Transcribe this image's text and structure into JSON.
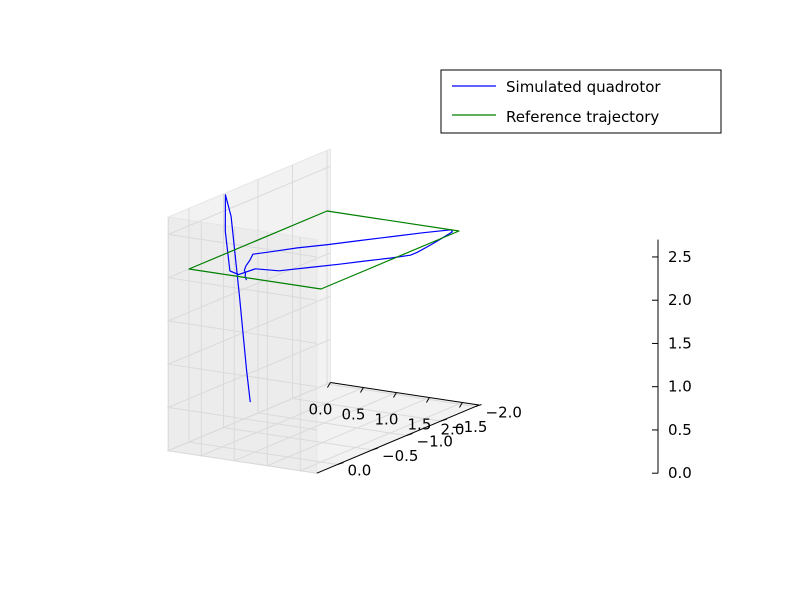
{
  "chart_data": {
    "type": "line",
    "projection": "3d",
    "grid": true,
    "legend": {
      "location": "upper-right",
      "entries": [
        {
          "label": "Simulated quadrotor",
          "color": "#0000ff"
        },
        {
          "label": "Reference trajectory",
          "color": "#008000"
        }
      ]
    },
    "x_ticks": [
      "0.0",
      "0.5",
      "1.0",
      "1.5",
      "2.0"
    ],
    "y_ticks": [
      "0.0",
      "−0.5",
      "−1.0",
      "−1.5",
      "−2.0"
    ],
    "z_ticks": [
      "0.0",
      "0.5",
      "1.0",
      "1.5",
      "2.0",
      "2.5"
    ],
    "xlim": [
      0,
      2.25
    ],
    "ylim": [
      -2.05,
      0.3
    ],
    "zlim": [
      0,
      2.7
    ],
    "series": [
      {
        "name": "Simulated quadrotor",
        "color": "#0000ff",
        "points": [
          {
            "x": 0.3,
            "y": -0.6,
            "z": 0.3
          },
          {
            "x": 0.35,
            "y": -0.5,
            "z": 0.7
          },
          {
            "x": 0.4,
            "y": -0.35,
            "z": 1.6
          },
          {
            "x": 0.45,
            "y": -0.18,
            "z": 2.6
          },
          {
            "x": 0.5,
            "y": -0.05,
            "z": 2.9
          },
          {
            "x": 0.55,
            "y": 0.0,
            "z": 2.5
          },
          {
            "x": 0.62,
            "y": 0.0,
            "z": 2.05
          },
          {
            "x": 0.7,
            "y": -0.05,
            "z": 2.0
          },
          {
            "x": 0.85,
            "y": -0.15,
            "z": 2.05
          },
          {
            "x": 1.05,
            "y": -0.3,
            "z": 2.0
          },
          {
            "x": 1.3,
            "y": -0.5,
            "z": 2.0
          },
          {
            "x": 1.55,
            "y": -0.7,
            "z": 2.0
          },
          {
            "x": 1.75,
            "y": -0.88,
            "z": 2.0
          },
          {
            "x": 1.95,
            "y": -1.05,
            "z": 2.0
          },
          {
            "x": 2.1,
            "y": -1.2,
            "z": 2.0
          },
          {
            "x": 2.1,
            "y": -1.3,
            "z": 2.0
          },
          {
            "x": 2.05,
            "y": -1.55,
            "z": 2.0
          },
          {
            "x": 2.0,
            "y": -1.75,
            "z": 2.0
          },
          {
            "x": 1.95,
            "y": -1.95,
            "z": 2.0
          },
          {
            "x": 1.88,
            "y": -2.0,
            "z": 2.0
          },
          {
            "x": 1.65,
            "y": -1.82,
            "z": 2.0
          },
          {
            "x": 1.4,
            "y": -1.6,
            "z": 2.0
          },
          {
            "x": 1.15,
            "y": -1.38,
            "z": 2.0
          },
          {
            "x": 0.9,
            "y": -1.15,
            "z": 2.0
          },
          {
            "x": 0.65,
            "y": -0.95,
            "z": 2.0
          },
          {
            "x": 0.45,
            "y": -0.75,
            "z": 2.0
          },
          {
            "x": 0.32,
            "y": -0.62,
            "z": 2.0
          },
          {
            "x": 0.45,
            "y": -0.45,
            "z": 2.0
          },
          {
            "x": 0.55,
            "y": -0.3,
            "z": 2.0
          },
          {
            "x": 0.65,
            "y": -0.18,
            "z": 2.0
          },
          {
            "x": 0.73,
            "y": -0.12,
            "z": 2.0
          },
          {
            "x": 0.83,
            "y": -0.02,
            "z": 2.0
          },
          {
            "x": 0.92,
            "y": 0.05,
            "z": 2.0
          }
        ]
      },
      {
        "name": "Reference trajectory",
        "color": "#008000",
        "points": [
          {
            "x": 0.0,
            "y": 0.0,
            "z": 2.0
          },
          {
            "x": 2.0,
            "y": 0.0,
            "z": 2.0
          },
          {
            "x": 2.0,
            "y": -2.0,
            "z": 2.0
          },
          {
            "x": 0.0,
            "y": -2.0,
            "z": 2.0
          },
          {
            "x": 0.0,
            "y": 0.0,
            "z": 2.0
          }
        ]
      }
    ]
  }
}
